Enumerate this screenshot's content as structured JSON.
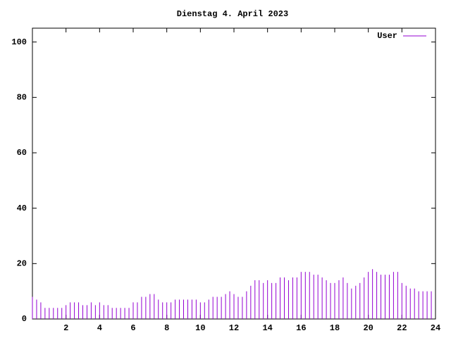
{
  "chart_data": {
    "type": "impulse",
    "title": "Dienstag 4. April 2023",
    "x": [
      0,
      0.25,
      0.5,
      0.75,
      1,
      1.25,
      1.5,
      1.75,
      2,
      2.25,
      2.5,
      2.75,
      3,
      3.25,
      3.5,
      3.75,
      4,
      4.25,
      4.5,
      4.75,
      5,
      5.25,
      5.5,
      5.75,
      6,
      6.25,
      6.5,
      6.75,
      7,
      7.25,
      7.5,
      7.75,
      8,
      8.25,
      8.5,
      8.75,
      9,
      9.25,
      9.5,
      9.75,
      10,
      10.25,
      10.5,
      10.75,
      11,
      11.25,
      11.5,
      11.75,
      12,
      12.25,
      12.5,
      12.75,
      13,
      13.25,
      13.5,
      13.75,
      14,
      14.25,
      14.5,
      14.75,
      15,
      15.25,
      15.5,
      15.75,
      16,
      16.25,
      16.5,
      16.75,
      17,
      17.25,
      17.5,
      17.75,
      18,
      18.25,
      18.5,
      18.75,
      19,
      19.25,
      19.5,
      19.75,
      20,
      20.25,
      20.5,
      20.75,
      21,
      21.25,
      21.5,
      21.75,
      22,
      22.25,
      22.5,
      22.75,
      23,
      23.25,
      23.5,
      23.75
    ],
    "series": [
      {
        "name": "User",
        "color": "#9400d3",
        "values": [
          8,
          7,
          6,
          4,
          4,
          4,
          4,
          4,
          5,
          6,
          6,
          6,
          5,
          5,
          6,
          5,
          6,
          5,
          5,
          4,
          4,
          4,
          4,
          4,
          6,
          6,
          8,
          8,
          9,
          9,
          7,
          6,
          6,
          6,
          7,
          7,
          7,
          7,
          7,
          7,
          6,
          6,
          7,
          8,
          8,
          8,
          9,
          10,
          9,
          8,
          8,
          10,
          12,
          14,
          14,
          13,
          14,
          13,
          13,
          15,
          15,
          14,
          15,
          15,
          17,
          17,
          17,
          16,
          16,
          15,
          14,
          13,
          13,
          14,
          15,
          13,
          11,
          12,
          13,
          15,
          17,
          18,
          17,
          16,
          16,
          16,
          17,
          17,
          13,
          12,
          11,
          11,
          10,
          10,
          10,
          10
        ]
      }
    ],
    "xlim": [
      0,
      24
    ],
    "xticks": [
      2,
      4,
      6,
      8,
      10,
      12,
      14,
      16,
      18,
      20,
      22,
      24
    ],
    "ylim": [
      0,
      105
    ],
    "yticks": [
      0,
      20,
      40,
      60,
      80,
      100
    ],
    "legend": "top-right"
  }
}
